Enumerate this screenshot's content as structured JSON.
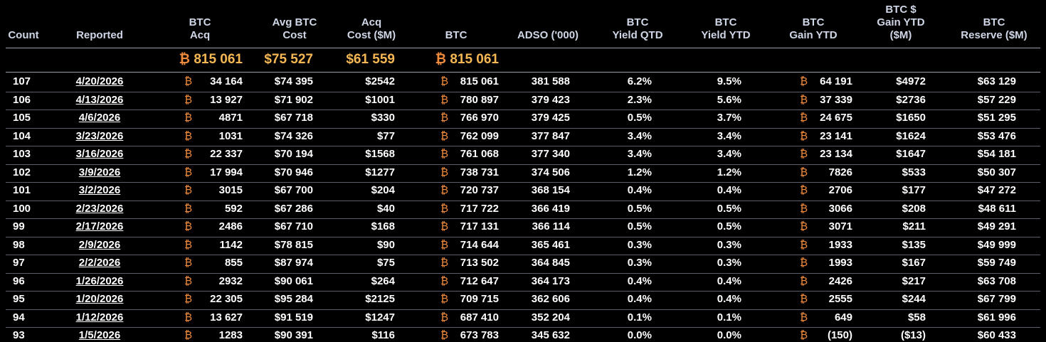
{
  "btc_symbol": "₿",
  "headers": {
    "count": [
      "Count"
    ],
    "reported": [
      "Reported"
    ],
    "btc_acq": [
      "BTC",
      "Acq"
    ],
    "avg_cost": [
      "Avg BTC",
      "Cost"
    ],
    "acq_cost": [
      "Acq",
      "Cost ($M)"
    ],
    "btc": [
      "BTC"
    ],
    "adso": [
      "ADSO ('000)"
    ],
    "yield_qtd": [
      "BTC",
      "Yield QTD"
    ],
    "yield_ytd": [
      "BTC",
      "Yield YTD"
    ],
    "gain_ytd": [
      "BTC",
      "Gain YTD"
    ],
    "usd_gain_ytd": [
      "BTC $",
      "Gain YTD",
      "($M)"
    ],
    "reserve": [
      "BTC",
      "Reserve ($M)"
    ]
  },
  "totals": {
    "btc_acq": "815 061",
    "avg_cost": "$75 527",
    "acq_cost": "$61 559",
    "btc": "815 061"
  },
  "rows": [
    {
      "count": "107",
      "reported": "4/20/2026",
      "btc_acq": "34 164",
      "avg_cost": "$74 395",
      "acq_cost": "$2542",
      "btc": "815 061",
      "adso": "381 588",
      "yield_qtd": "6.2%",
      "yield_ytd": "9.5%",
      "gain_ytd": "64 191",
      "usd_gain_ytd": "$4972",
      "reserve": "$63 129"
    },
    {
      "count": "106",
      "reported": "4/13/2026",
      "btc_acq": "13 927",
      "avg_cost": "$71 902",
      "acq_cost": "$1001",
      "btc": "780 897",
      "adso": "379 423",
      "yield_qtd": "2.3%",
      "yield_ytd": "5.6%",
      "gain_ytd": "37 339",
      "usd_gain_ytd": "$2736",
      "reserve": "$57 229"
    },
    {
      "count": "105",
      "reported": "4/6/2026",
      "btc_acq": "4871",
      "avg_cost": "$67 718",
      "acq_cost": "$330",
      "btc": "766 970",
      "adso": "379 425",
      "yield_qtd": "0.5%",
      "yield_ytd": "3.7%",
      "gain_ytd": "24 675",
      "usd_gain_ytd": "$1650",
      "reserve": "$51 295"
    },
    {
      "count": "104",
      "reported": "3/23/2026",
      "btc_acq": "1031",
      "avg_cost": "$74 326",
      "acq_cost": "$77",
      "btc": "762 099",
      "adso": "377 847",
      "yield_qtd": "3.4%",
      "yield_ytd": "3.4%",
      "gain_ytd": "23 141",
      "usd_gain_ytd": "$1624",
      "reserve": "$53 476"
    },
    {
      "count": "103",
      "reported": "3/16/2026",
      "btc_acq": "22 337",
      "avg_cost": "$70 194",
      "acq_cost": "$1568",
      "btc": "761 068",
      "adso": "377 340",
      "yield_qtd": "3.4%",
      "yield_ytd": "3.4%",
      "gain_ytd": "23 134",
      "usd_gain_ytd": "$1647",
      "reserve": "$54 181"
    },
    {
      "count": "102",
      "reported": "3/9/2026",
      "btc_acq": "17 994",
      "avg_cost": "$70 946",
      "acq_cost": "$1277",
      "btc": "738 731",
      "adso": "374 506",
      "yield_qtd": "1.2%",
      "yield_ytd": "1.2%",
      "gain_ytd": "7826",
      "usd_gain_ytd": "$533",
      "reserve": "$50 307"
    },
    {
      "count": "101",
      "reported": "3/2/2026",
      "btc_acq": "3015",
      "avg_cost": "$67 700",
      "acq_cost": "$204",
      "btc": "720 737",
      "adso": "368 154",
      "yield_qtd": "0.4%",
      "yield_ytd": "0.4%",
      "gain_ytd": "2706",
      "usd_gain_ytd": "$177",
      "reserve": "$47 272"
    },
    {
      "count": "100",
      "reported": "2/23/2026",
      "btc_acq": "592",
      "avg_cost": "$67 286",
      "acq_cost": "$40",
      "btc": "717 722",
      "adso": "366 419",
      "yield_qtd": "0.5%",
      "yield_ytd": "0.5%",
      "gain_ytd": "3066",
      "usd_gain_ytd": "$208",
      "reserve": "$48 611"
    },
    {
      "count": "99",
      "reported": "2/17/2026",
      "btc_acq": "2486",
      "avg_cost": "$67 710",
      "acq_cost": "$168",
      "btc": "717 131",
      "adso": "366 114",
      "yield_qtd": "0.5%",
      "yield_ytd": "0.5%",
      "gain_ytd": "3071",
      "usd_gain_ytd": "$211",
      "reserve": "$49 291"
    },
    {
      "count": "98",
      "reported": "2/9/2026",
      "btc_acq": "1142",
      "avg_cost": "$78 815",
      "acq_cost": "$90",
      "btc": "714 644",
      "adso": "365 461",
      "yield_qtd": "0.3%",
      "yield_ytd": "0.3%",
      "gain_ytd": "1933",
      "usd_gain_ytd": "$135",
      "reserve": "$49 999"
    },
    {
      "count": "97",
      "reported": "2/2/2026",
      "btc_acq": "855",
      "avg_cost": "$87 974",
      "acq_cost": "$75",
      "btc": "713 502",
      "adso": "364 845",
      "yield_qtd": "0.3%",
      "yield_ytd": "0.3%",
      "gain_ytd": "1993",
      "usd_gain_ytd": "$167",
      "reserve": "$59 749"
    },
    {
      "count": "96",
      "reported": "1/26/2026",
      "btc_acq": "2932",
      "avg_cost": "$90 061",
      "acq_cost": "$264",
      "btc": "712 647",
      "adso": "364 173",
      "yield_qtd": "0.4%",
      "yield_ytd": "0.4%",
      "gain_ytd": "2426",
      "usd_gain_ytd": "$217",
      "reserve": "$63 708"
    },
    {
      "count": "95",
      "reported": "1/20/2026",
      "btc_acq": "22 305",
      "avg_cost": "$95 284",
      "acq_cost": "$2125",
      "btc": "709 715",
      "adso": "362 606",
      "yield_qtd": "0.4%",
      "yield_ytd": "0.4%",
      "gain_ytd": "2555",
      "usd_gain_ytd": "$244",
      "reserve": "$67 799"
    },
    {
      "count": "94",
      "reported": "1/12/2026",
      "btc_acq": "13 627",
      "avg_cost": "$91 519",
      "acq_cost": "$1247",
      "btc": "687 410",
      "adso": "352 204",
      "yield_qtd": "0.1%",
      "yield_ytd": "0.1%",
      "gain_ytd": "649",
      "usd_gain_ytd": "$58",
      "reserve": "$61 996"
    },
    {
      "count": "93",
      "reported": "1/5/2026",
      "btc_acq": "1283",
      "avg_cost": "$90 391",
      "acq_cost": "$116",
      "btc": "673 783",
      "adso": "345 632",
      "yield_qtd": "0.0%",
      "yield_ytd": "0.0%",
      "gain_ytd": "(150)",
      "usd_gain_ytd": "($13)",
      "reserve": "$60 433"
    }
  ],
  "colors": {
    "background": "#000000",
    "header_text": "#cfd6e6",
    "totals_text": "#f5b754",
    "btc_symbol": "#f08a3c",
    "row_text": "#ffffff",
    "divider": "#5a5f6b"
  }
}
